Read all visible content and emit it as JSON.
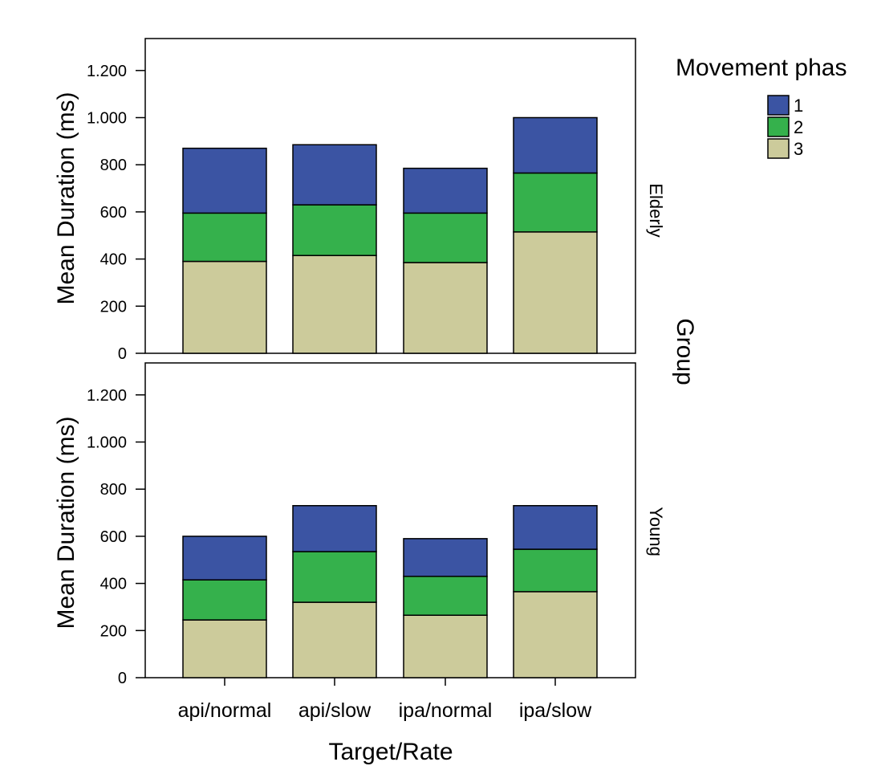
{
  "chart_data": {
    "type": "bar",
    "stacked": true,
    "xlabel": "Target/Rate",
    "ylabel": "Mean Duration (ms)",
    "facet_title": "Group",
    "categories": [
      "api/normal",
      "api/slow",
      "ipa/normal",
      "ipa/slow"
    ],
    "yticks": [
      0,
      200,
      400,
      600,
      800,
      1000,
      1200
    ],
    "ytick_labels": [
      "0",
      "200",
      "400",
      "600",
      "800",
      "1.000",
      "1.200"
    ],
    "ylim": [
      0,
      1300
    ],
    "legend": {
      "title": "Movement phas",
      "placement": "top-right",
      "entries": [
        {
          "label": "1",
          "color": "#3b54a3"
        },
        {
          "label": "2",
          "color": "#35b14c"
        },
        {
          "label": "3",
          "color": "#cccb9b"
        }
      ]
    },
    "panels": [
      {
        "name": "Elderly",
        "series": [
          {
            "name": "3",
            "color": "#cccb9b",
            "values": [
              390,
              415,
              385,
              515
            ]
          },
          {
            "name": "2",
            "color": "#35b14c",
            "values": [
              205,
              215,
              210,
              250
            ]
          },
          {
            "name": "1",
            "color": "#3b54a3",
            "values": [
              275,
              255,
              190,
              235
            ]
          }
        ]
      },
      {
        "name": "Young",
        "series": [
          {
            "name": "3",
            "color": "#cccb9b",
            "values": [
              245,
              320,
              265,
              365
            ]
          },
          {
            "name": "2",
            "color": "#35b14c",
            "values": [
              170,
              215,
              165,
              180
            ]
          },
          {
            "name": "1",
            "color": "#3b54a3",
            "values": [
              185,
              195,
              160,
              185
            ]
          }
        ]
      }
    ]
  }
}
